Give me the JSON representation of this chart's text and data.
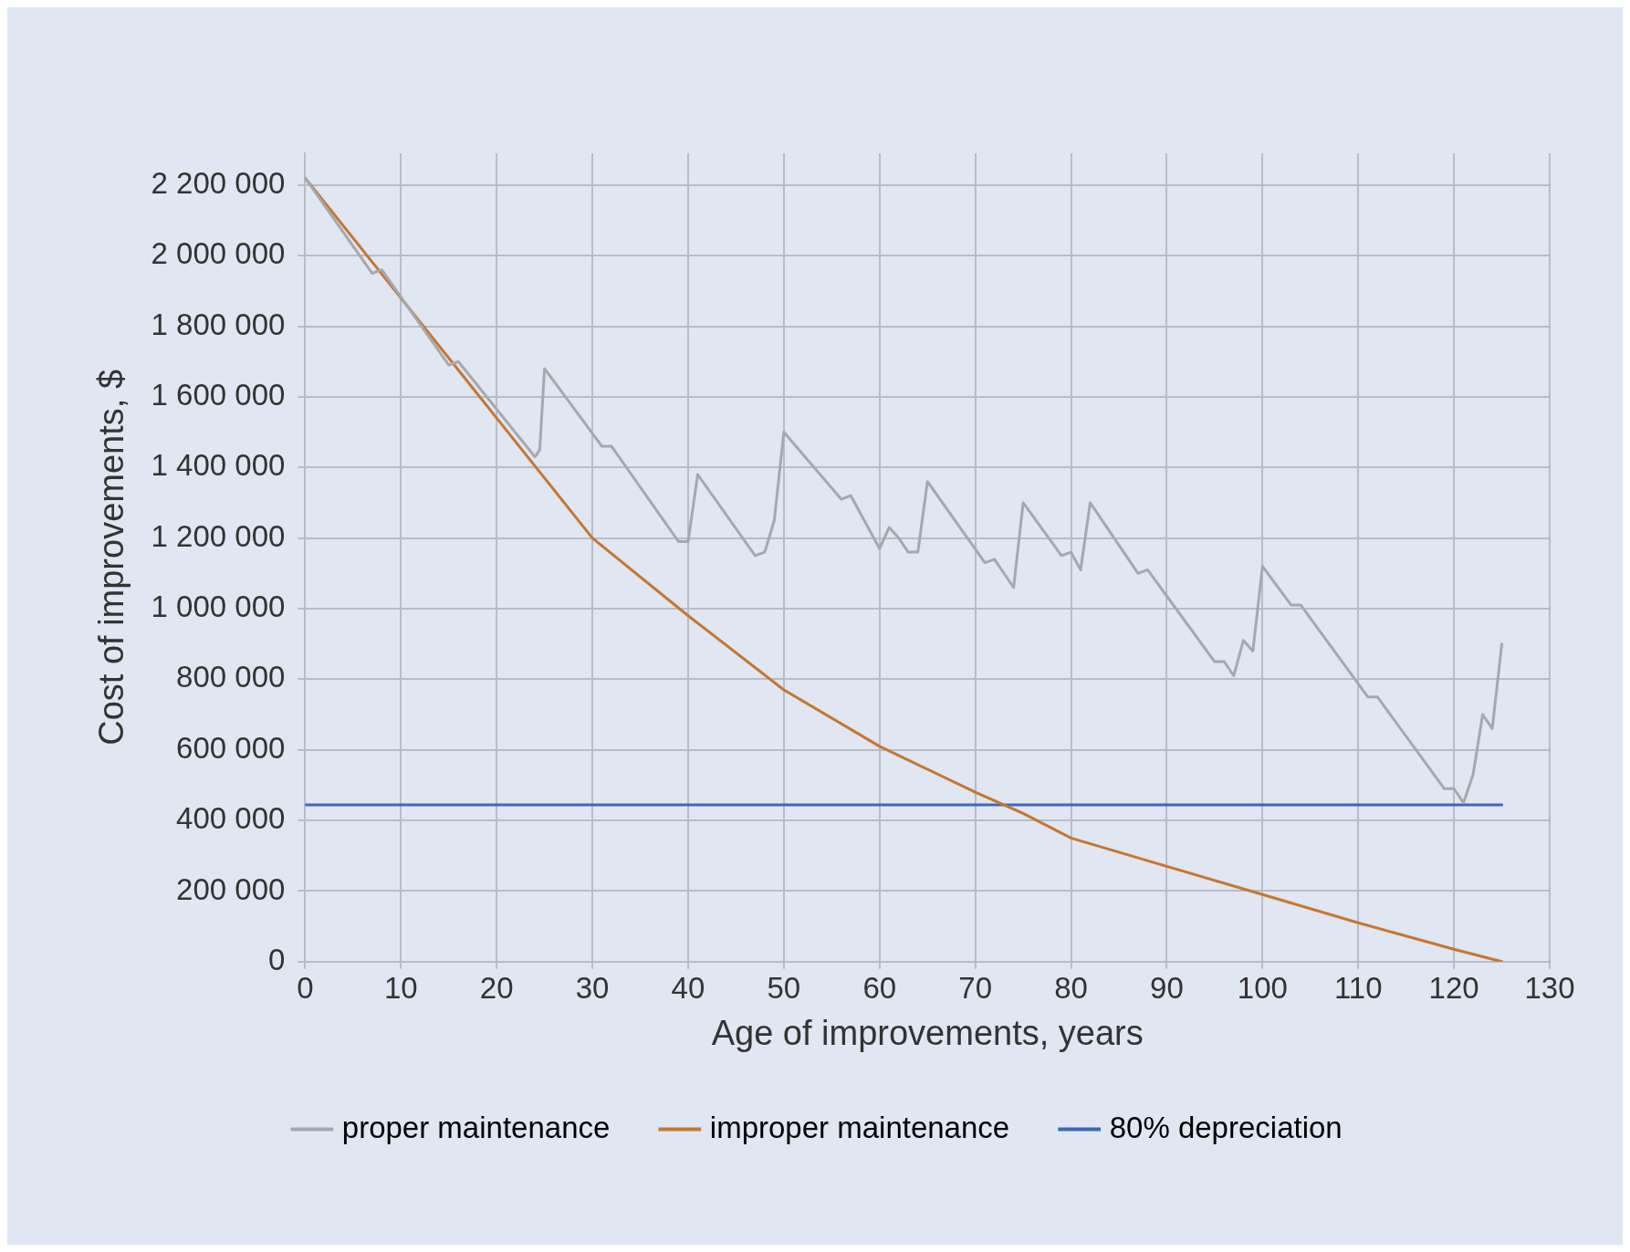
{
  "chart_data": {
    "type": "line",
    "xlabel": "Age of improvements, years",
    "ylabel": "Cost of improvements, $",
    "xlim": [
      0,
      130
    ],
    "xticks": [
      0,
      10,
      20,
      30,
      40,
      50,
      60,
      70,
      80,
      90,
      100,
      110,
      120,
      130
    ],
    "ylim": [
      0,
      2290000
    ],
    "yticks": [
      0,
      200000,
      400000,
      600000,
      800000,
      1000000,
      1200000,
      1400000,
      1600000,
      1800000,
      2000000,
      2200000
    ],
    "grid": true,
    "legend": "bottom",
    "marker": "none",
    "line_style": "solid",
    "series": [
      {
        "name": "proper maintenance",
        "color": "#a5a8ae",
        "x": [
          0,
          7,
          8,
          15,
          16,
          24,
          24.5,
          25,
          31,
          32,
          39,
          40,
          41,
          47,
          48,
          49,
          50,
          56,
          57,
          60,
          61,
          62,
          63,
          64,
          65,
          71,
          72,
          74,
          75,
          79,
          80,
          81,
          82,
          87,
          88,
          95,
          96,
          97,
          98,
          99,
          100,
          103,
          104,
          111,
          112,
          119,
          120,
          121,
          122,
          123,
          124,
          125
        ],
        "values": [
          2220000,
          1950000,
          1960000,
          1690000,
          1700000,
          1430000,
          1450000,
          1680000,
          1460000,
          1460000,
          1190000,
          1190000,
          1380000,
          1150000,
          1160000,
          1250000,
          1500000,
          1310000,
          1320000,
          1170000,
          1230000,
          1200000,
          1160000,
          1160000,
          1360000,
          1130000,
          1140000,
          1060000,
          1300000,
          1150000,
          1160000,
          1110000,
          1300000,
          1100000,
          1110000,
          850000,
          850000,
          810000,
          910000,
          880000,
          1120000,
          1010000,
          1010000,
          750000,
          750000,
          490000,
          490000,
          450000,
          530000,
          700000,
          660000,
          900000
        ]
      },
      {
        "name": "improper maintenance",
        "color": "#c8762e",
        "x": [
          0,
          10,
          20,
          30,
          40,
          50,
          60,
          70,
          75,
          80,
          90,
          100,
          110,
          120,
          125
        ],
        "values": [
          2220000,
          1880000,
          1540000,
          1200000,
          980000,
          770000,
          610000,
          480000,
          420000,
          350000,
          270000,
          190000,
          110000,
          35000,
          0
        ]
      },
      {
        "name": "80% depreciation",
        "color": "#4066b8",
        "x": [
          0,
          125
        ],
        "values": [
          444000,
          444000
        ]
      }
    ]
  }
}
